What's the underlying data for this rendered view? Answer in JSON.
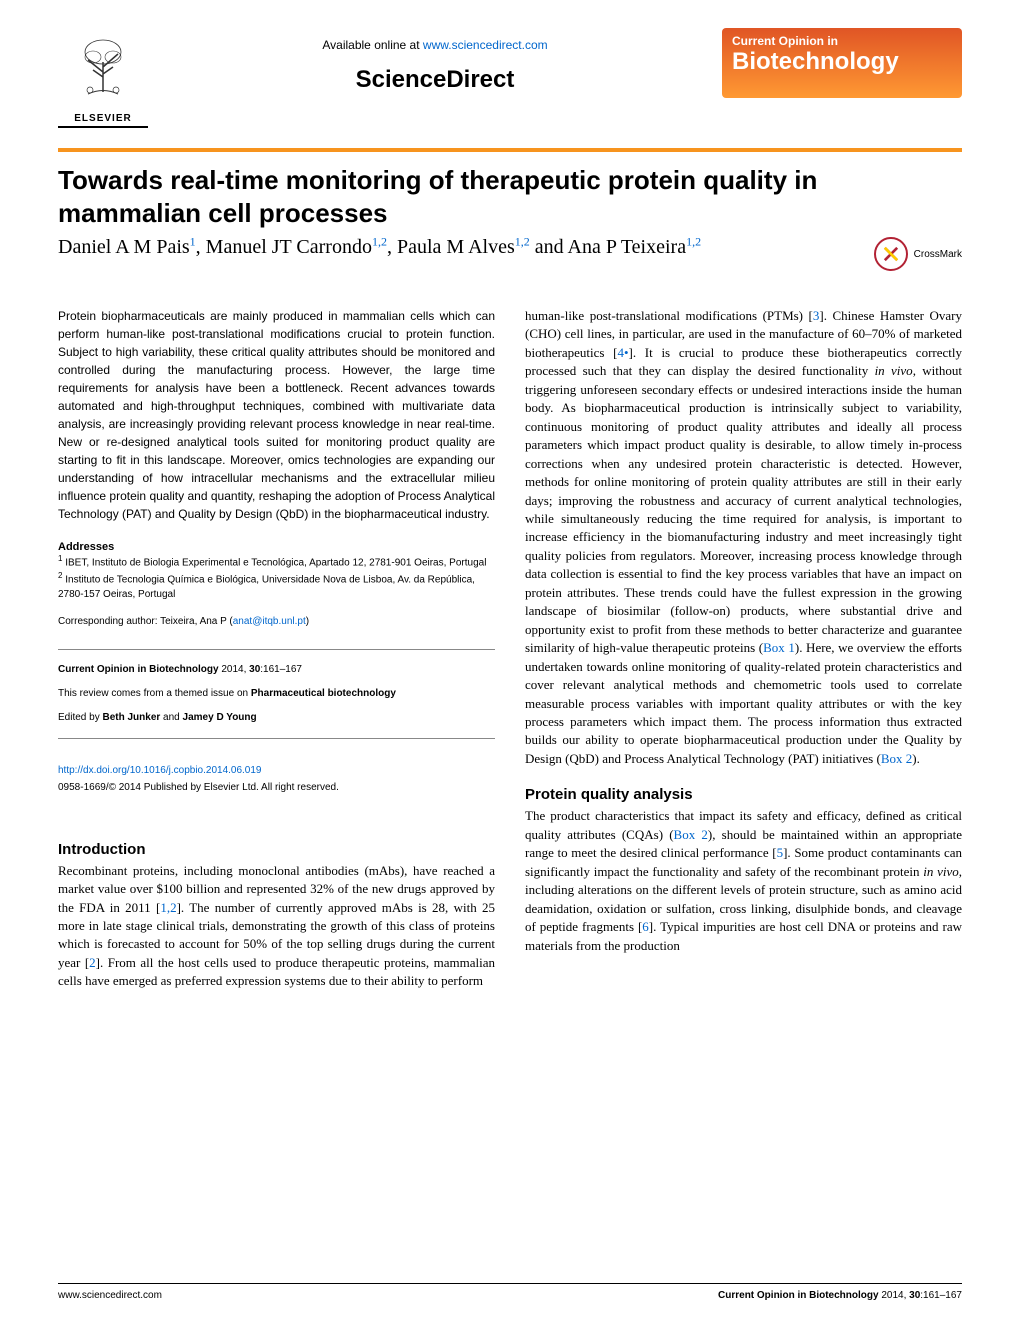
{
  "header": {
    "available_text": "Available online at ",
    "available_url": "www.sciencedirect.com",
    "sciencedirect": "ScienceDirect",
    "elsevier_label": "ELSEVIER",
    "badge_top": "Current Opinion in",
    "badge_bottom": "Biotechnology"
  },
  "title": "Towards real-time monitoring of therapeutic protein quality in mammalian cell processes",
  "authors_html": "Daniel A M Pais<sup>1</sup>, Manuel JT Carrondo<sup>1,2</sup>, Paula M Alves<sup>1,2</sup> and Ana P Teixeira<sup>1,2</sup>",
  "crossmark_label": "CrossMark",
  "abstract": "Protein biopharmaceuticals are mainly produced in mammalian cells which can perform human-like post-translational modifications crucial to protein function. Subject to high variability, these critical quality attributes should be monitored and controlled during the manufacturing process. However, the large time requirements for analysis have been a bottleneck. Recent advances towards automated and high-throughput techniques, combined with multivariate data analysis, are increasingly providing relevant process knowledge in near real-time. New or re-designed analytical tools suited for monitoring product quality are starting to fit in this landscape. Moreover, omics technologies are expanding our understanding of how intracellular mechanisms and the extracellular milieu influence protein quality and quantity, reshaping the adoption of Process Analytical Technology (PAT) and Quality by Design (QbD) in the biopharmaceutical industry.",
  "addresses_heading": "Addresses",
  "address1": "IBET, Instituto de Biologia Experimental e Tecnológica, Apartado 12, 2781-901 Oeiras, Portugal",
  "address2": "Instituto de Tecnologia Química e Biológica, Universidade Nova de Lisboa, Av. da República, 2780-157 Oeiras, Portugal",
  "corresponding_text": "Corresponding author: Teixeira, Ana P (",
  "corresponding_email": "anat@itqb.unl.pt",
  "citation": {
    "journal": "Current Opinion in Biotechnology",
    "year_vol": " 2014, ",
    "vol_pages": "30",
    "pages": ":161–167",
    "themed": "This review comes from a themed issue on ",
    "themed_bold": "Pharmaceutical biotechnology",
    "edited_by": "Edited by ",
    "editor1": "Beth Junker",
    "and": " and ",
    "editor2": "Jamey D Young"
  },
  "doi": "http://dx.doi.org/10.1016/j.copbio.2014.06.019",
  "copyright": "0958-1669/© 2014 Published by Elsevier Ltd. All right reserved.",
  "intro_heading": "Introduction",
  "intro_body": "Recombinant proteins, including monoclonal antibodies (mAbs), have reached a market value over $100 billion and represented 32% of the new drugs approved by the FDA in 2011 [<span class=\"ref\">1,2</span>]. The number of currently approved mAbs is 28, with 25 more in late stage clinical trials, demonstrating the growth of this class of proteins which is forecasted to account for 50% of the top selling drugs during the current year [<span class=\"ref\">2</span>]. From all the host cells used to produce therapeutic proteins, mammalian cells have emerged as preferred expression systems due to their ability to perform",
  "col2_body": "human-like post-translational modifications (PTMs) [<span class=\"ref\">3</span>]. Chinese Hamster Ovary (CHO) cell lines, in particular, are used in the manufacture of 60–70% of marketed biotherapeutics [<span class=\"ref\">4•</span>]. It is crucial to produce these biotherapeutics correctly processed such that they can display the desired functionality <span class=\"italic\">in vivo</span>, without triggering unforeseen secondary effects or undesired interactions inside the human body. As biopharmaceutical production is intrinsically subject to variability, continuous monitoring of product quality attributes and ideally all process parameters which impact product quality is desirable, to allow timely in-process corrections when any undesired protein characteristic is detected. However, methods for online monitoring of protein quality attributes are still in their early days; improving the robustness and accuracy of current analytical technologies, while simultaneously reducing the time required for analysis, is important to increase efficiency in the biomanufacturing industry and meet increasingly tight quality policies from regulators. Moreover, increasing process knowledge through data collection is essential to find the key process variables that have an impact on protein attributes. These trends could have the fullest expression in the growing landscape of biosimilar (follow-on) products, where substantial drive and opportunity exist to profit from these methods to better characterize and guarantee similarity of high-value therapeutic proteins (<span class=\"ref\">Box 1</span>). Here, we overview the efforts undertaken towards online monitoring of quality-related protein characteristics and cover relevant analytical methods and chemometric tools used to correlate measurable process variables with important quality attributes or with the key process parameters which impact them. The process information thus extracted builds our ability to operate biopharmaceutical production under the Quality by Design (QbD) and Process Analytical Technology (PAT) initiatives (<span class=\"ref\">Box 2</span>).",
  "pqa_heading": "Protein quality analysis",
  "pqa_body": "The product characteristics that impact its safety and efficacy, defined as critical quality attributes (CQAs) (<span class=\"ref\">Box 2</span>), should be maintained within an appropriate range to meet the desired clinical performance [<span class=\"ref\">5</span>]. Some product contaminants can significantly impact the functionality and safety of the recombinant protein <span class=\"italic\">in vivo</span>, including alterations on the different levels of protein structure, such as amino acid deamidation, oxidation or sulfation, cross linking, disulphide bonds, and cleavage of peptide fragments [<span class=\"ref\">6</span>]. Typical impurities are host cell DNA or proteins and raw materials from the production",
  "footer": {
    "left": "www.sciencedirect.com",
    "right_plain": "Current Opinion in Biotechnology",
    "right_rest": " 2014, ",
    "right_vol": "30",
    "right_pages": ":161–167"
  },
  "colors": {
    "orange_rule": "#f7941e",
    "badge_top": "#e05525",
    "badge_bottom": "#ff9933",
    "link": "#0066cc"
  }
}
